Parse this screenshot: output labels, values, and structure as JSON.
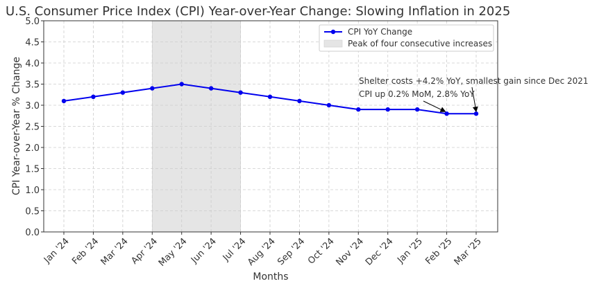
{
  "chart_data": {
    "type": "line",
    "title": "U.S. Consumer Price Index (CPI) Year-over-Year Change: Slowing Inflation in 2025",
    "xlabel": "Months",
    "ylabel": "CPI Year-over-Year % Change",
    "categories": [
      "Jan '24",
      "Feb '24",
      "Mar '24",
      "Apr '24",
      "May '24",
      "Jun '24",
      "Jul '24",
      "Aug '24",
      "Sep '24",
      "Oct '24",
      "Nov '24",
      "Dec '24",
      "Jan '25",
      "Feb '25",
      "Mar '25"
    ],
    "series": [
      {
        "name": "CPI YoY Change",
        "values": [
          3.1,
          3.2,
          3.3,
          3.4,
          3.5,
          3.4,
          3.3,
          3.2,
          3.1,
          3.0,
          2.9,
          2.9,
          2.9,
          2.8,
          2.8
        ],
        "color": "#0000ee"
      }
    ],
    "ylim": [
      0,
      5
    ],
    "yticks": [
      0.0,
      0.5,
      1.0,
      1.5,
      2.0,
      2.5,
      3.0,
      3.5,
      4.0,
      4.5,
      5.0
    ],
    "grid": true,
    "legend_position": "top-right",
    "shaded_region": {
      "label": "Peak of four consecutive increases",
      "from": "Apr '24",
      "to": "Jul '24",
      "color": "#e5e5e5"
    },
    "annotations": [
      {
        "text": "Shelter costs +4.2% YoY, smallest gain since Dec 2021",
        "target": "Mar '25"
      },
      {
        "text": "CPI up 0.2% MoM, 2.8% YoY",
        "target": "Feb '25"
      }
    ]
  }
}
